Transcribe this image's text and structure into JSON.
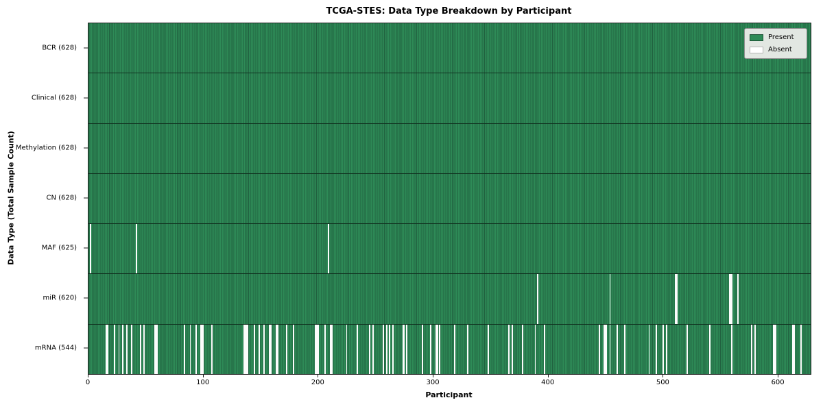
{
  "title": "TCGA-STES: Data Type Breakdown by Participant",
  "legend": {
    "present_label": "Present",
    "absent_label": "Absent"
  },
  "colors": {
    "present": "#2e8b57",
    "present_edge": "#20603f",
    "absent": "#ffffff",
    "legend_bg": "#e2e7e2",
    "axis": "#1a1a1a"
  },
  "chart_data": {
    "type": "heatmap",
    "title": "TCGA-STES: Data Type Breakdown by Participant",
    "xlabel": "Participant",
    "ylabel": "Data Type (Total Sample Count)",
    "x_ticks": [
      0,
      100,
      200,
      300,
      400,
      500,
      600
    ],
    "xlim": [
      0,
      628
    ],
    "total_participants": 628,
    "legend_entries": [
      "Present",
      "Absent"
    ],
    "legend_position": "upper right",
    "grid": false,
    "rows": [
      {
        "name": "BCR",
        "label": "BCR (628)",
        "present_count": 628,
        "absent_participants": []
      },
      {
        "name": "Clinical",
        "label": "Clinical (628)",
        "present_count": 628,
        "absent_participants": []
      },
      {
        "name": "Methylation",
        "label": "Methylation (628)",
        "present_count": 628,
        "absent_participants": []
      },
      {
        "name": "CN",
        "label": "CN (628)",
        "present_count": 628,
        "absent_participants": []
      },
      {
        "name": "MAF",
        "label": "MAF (625)",
        "present_count": 625,
        "absent_participants": [
          1,
          41,
          208
        ]
      },
      {
        "name": "miR",
        "label": "miR (620)",
        "present_count": 620,
        "absent_participants": [
          390,
          453,
          510,
          511,
          557,
          558,
          559,
          564
        ]
      },
      {
        "name": "mRNA",
        "label": "mRNA (544)",
        "present_count": 544,
        "absent_participants": [
          15,
          16,
          22,
          26,
          29,
          33,
          37,
          45,
          48,
          57,
          58,
          59,
          83,
          88,
          93,
          97,
          98,
          99,
          107,
          135,
          136,
          137,
          138,
          144,
          148,
          152,
          157,
          158,
          163,
          164,
          172,
          178,
          197,
          198,
          199,
          205,
          210,
          211,
          224,
          233,
          244,
          247,
          256,
          259,
          261,
          264,
          273,
          274,
          276,
          290,
          297,
          302,
          303,
          305,
          318,
          329,
          347,
          365,
          368,
          377,
          388,
          396,
          444,
          448,
          449,
          450,
          453,
          459,
          466,
          487,
          493,
          499,
          502,
          520,
          540,
          559,
          576,
          579,
          595,
          596,
          597,
          612,
          613,
          619
        ]
      }
    ]
  }
}
